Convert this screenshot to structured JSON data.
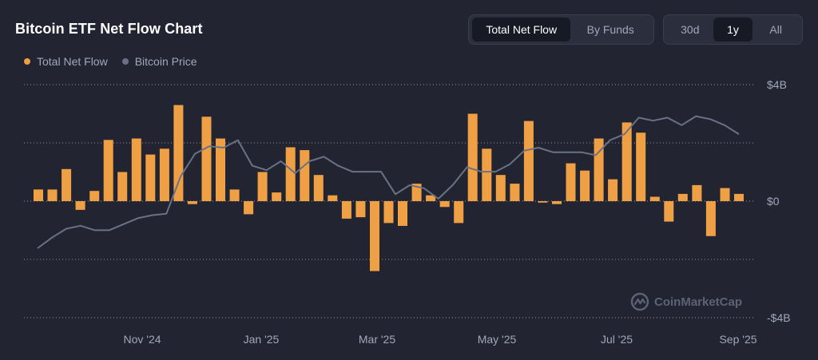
{
  "header": {
    "title": "Bitcoin ETF Net Flow Chart"
  },
  "view_toggle": [
    {
      "label": "Total Net Flow",
      "active": true
    },
    {
      "label": "By Funds",
      "active": false
    }
  ],
  "range_toggle": [
    {
      "label": "30d",
      "active": false
    },
    {
      "label": "1y",
      "active": true
    },
    {
      "label": "All",
      "active": false
    }
  ],
  "legend": [
    {
      "label": "Total Net Flow",
      "color": "#f0a044"
    },
    {
      "label": "Bitcoin Price",
      "color": "#6b7185"
    }
  ],
  "watermark": {
    "text": "CoinMarketCap",
    "icon": "coinmarketcap-logo-icon"
  },
  "colors": {
    "bar": "#f0a044",
    "line": "#6b7185",
    "grid": "#c0c4d0",
    "background": "#222531"
  },
  "chart_data": {
    "type": "bar",
    "y_axis": {
      "ticks": [
        "$4B",
        "$0",
        "-$4B"
      ],
      "tick_values": [
        4,
        0,
        -4
      ],
      "ylim": [
        -4,
        4
      ],
      "unit": "B USD",
      "grid": true
    },
    "x_axis": {
      "ticks": [
        "Nov '24",
        "Jan '25",
        "Mar '25",
        "May '25",
        "Jul '25",
        "Sep '25"
      ]
    },
    "series": [
      {
        "name": "Total Net Flow",
        "type": "bar",
        "values": [
          0.4,
          0.4,
          1.1,
          -0.3,
          0.35,
          2.1,
          1.0,
          2.15,
          1.6,
          1.8,
          3.3,
          -0.1,
          2.9,
          2.15,
          0.4,
          -0.45,
          1.0,
          0.3,
          1.85,
          1.75,
          0.9,
          0.2,
          -0.6,
          -0.55,
          -2.4,
          -0.75,
          -0.85,
          0.6,
          0.2,
          -0.2,
          -0.75,
          3.0,
          1.8,
          0.9,
          0.6,
          2.75,
          -0.05,
          -0.1,
          1.3,
          1.05,
          2.15,
          0.75,
          2.7,
          2.35,
          0.15,
          -0.7,
          0.25,
          0.55,
          -1.2,
          0.45,
          0.25
        ]
      },
      {
        "name": "Bitcoin Price",
        "type": "line",
        "relative_values": [
          0.0,
          0.07,
          0.13,
          0.15,
          0.12,
          0.12,
          0.16,
          0.2,
          0.22,
          0.23,
          0.48,
          0.63,
          0.68,
          0.67,
          0.72,
          0.55,
          0.52,
          0.58,
          0.5,
          0.58,
          0.61,
          0.55,
          0.51,
          0.51,
          0.51,
          0.36,
          0.42,
          0.4,
          0.33,
          0.42,
          0.54,
          0.51,
          0.51,
          0.56,
          0.65,
          0.67,
          0.64,
          0.64,
          0.64,
          0.62,
          0.72,
          0.76,
          0.87,
          0.85,
          0.87,
          0.82,
          0.88,
          0.86,
          0.82,
          0.76
        ]
      }
    ]
  }
}
